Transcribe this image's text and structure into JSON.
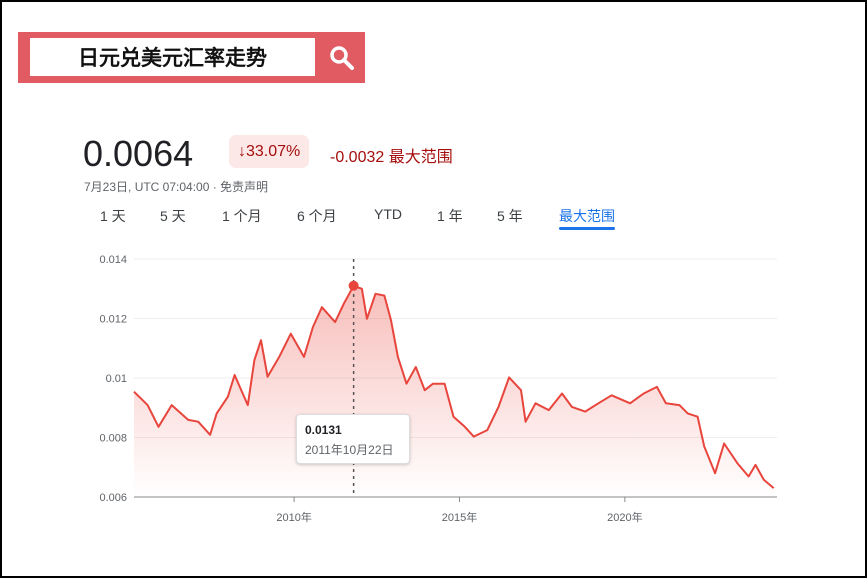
{
  "search": {
    "query": "日元兑美元汇率走势",
    "icon": "search-icon",
    "color": "#e05c62"
  },
  "quote": {
    "price": "0.0064",
    "change_pct": "↓33.07%",
    "change_abs": "-0.0032 最大范围",
    "meta": "7月23日, UTC 07:04:00 · 免责声明"
  },
  "tabs": [
    {
      "label": "1 天"
    },
    {
      "label": "5 天"
    },
    {
      "label": "1 个月"
    },
    {
      "label": "6 个月"
    },
    {
      "label": "YTD"
    },
    {
      "label": "1 年"
    },
    {
      "label": "5 年"
    },
    {
      "label": "最大范围",
      "active": true
    }
  ],
  "tooltip": {
    "value": "0.0131",
    "date": "2011年10月22日"
  },
  "chart_data": {
    "type": "area",
    "line_color": "#e8453c",
    "ylim": [
      0.006,
      0.014
    ],
    "yticks": [
      "0.014",
      "0.012",
      "0.01",
      "0.008",
      "0.006"
    ],
    "xticks": [
      {
        "x": 2010,
        "label": "2010年"
      },
      {
        "x": 2015,
        "label": "2015年"
      },
      {
        "x": 2020,
        "label": "2020年"
      }
    ],
    "xlim": [
      2005.16,
      2024.6
    ],
    "highlight": {
      "x": 2011.8,
      "y": 0.0131
    },
    "points": [
      [
        2005.16,
        0.00954
      ],
      [
        2005.57,
        0.00909
      ],
      [
        2005.9,
        0.00836
      ],
      [
        2006.3,
        0.00909
      ],
      [
        2006.8,
        0.00859
      ],
      [
        2007.1,
        0.00853
      ],
      [
        2007.46,
        0.00809
      ],
      [
        2007.66,
        0.00881
      ],
      [
        2008.0,
        0.00937
      ],
      [
        2008.2,
        0.0101
      ],
      [
        2008.6,
        0.00909
      ],
      [
        2008.8,
        0.0106
      ],
      [
        2009.0,
        0.01127
      ],
      [
        2009.2,
        0.01004
      ],
      [
        2009.55,
        0.01071
      ],
      [
        2009.9,
        0.01149
      ],
      [
        2010.3,
        0.01071
      ],
      [
        2010.57,
        0.01171
      ],
      [
        2010.84,
        0.01238
      ],
      [
        2011.24,
        0.01188
      ],
      [
        2011.5,
        0.01249
      ],
      [
        2011.8,
        0.0131
      ],
      [
        2012.05,
        0.013
      ],
      [
        2012.2,
        0.01199
      ],
      [
        2012.46,
        0.01283
      ],
      [
        2012.73,
        0.01277
      ],
      [
        2012.93,
        0.01194
      ],
      [
        2013.14,
        0.01071
      ],
      [
        2013.4,
        0.00981
      ],
      [
        2013.68,
        0.01037
      ],
      [
        2013.95,
        0.00959
      ],
      [
        2014.2,
        0.00981
      ],
      [
        2014.55,
        0.00981
      ],
      [
        2014.82,
        0.0087
      ],
      [
        2015.16,
        0.00836
      ],
      [
        2015.43,
        0.00803
      ],
      [
        2015.84,
        0.00825
      ],
      [
        2016.18,
        0.00903
      ],
      [
        2016.5,
        0.01002
      ],
      [
        2016.86,
        0.00959
      ],
      [
        2017.0,
        0.00853
      ],
      [
        2017.3,
        0.00915
      ],
      [
        2017.7,
        0.00892
      ],
      [
        2018.1,
        0.00948
      ],
      [
        2018.4,
        0.00903
      ],
      [
        2018.8,
        0.00887
      ],
      [
        2019.2,
        0.00915
      ],
      [
        2019.6,
        0.00942
      ],
      [
        2020.16,
        0.00915
      ],
      [
        2020.57,
        0.00948
      ],
      [
        2020.97,
        0.0097
      ],
      [
        2021.24,
        0.00915
      ],
      [
        2021.65,
        0.00909
      ],
      [
        2021.9,
        0.00881
      ],
      [
        2022.2,
        0.0087
      ],
      [
        2022.4,
        0.0077
      ],
      [
        2022.73,
        0.0068
      ],
      [
        2023.0,
        0.0078
      ],
      [
        2023.4,
        0.00714
      ],
      [
        2023.74,
        0.00669
      ],
      [
        2023.95,
        0.00708
      ],
      [
        2024.2,
        0.00658
      ],
      [
        2024.5,
        0.0063
      ]
    ]
  }
}
